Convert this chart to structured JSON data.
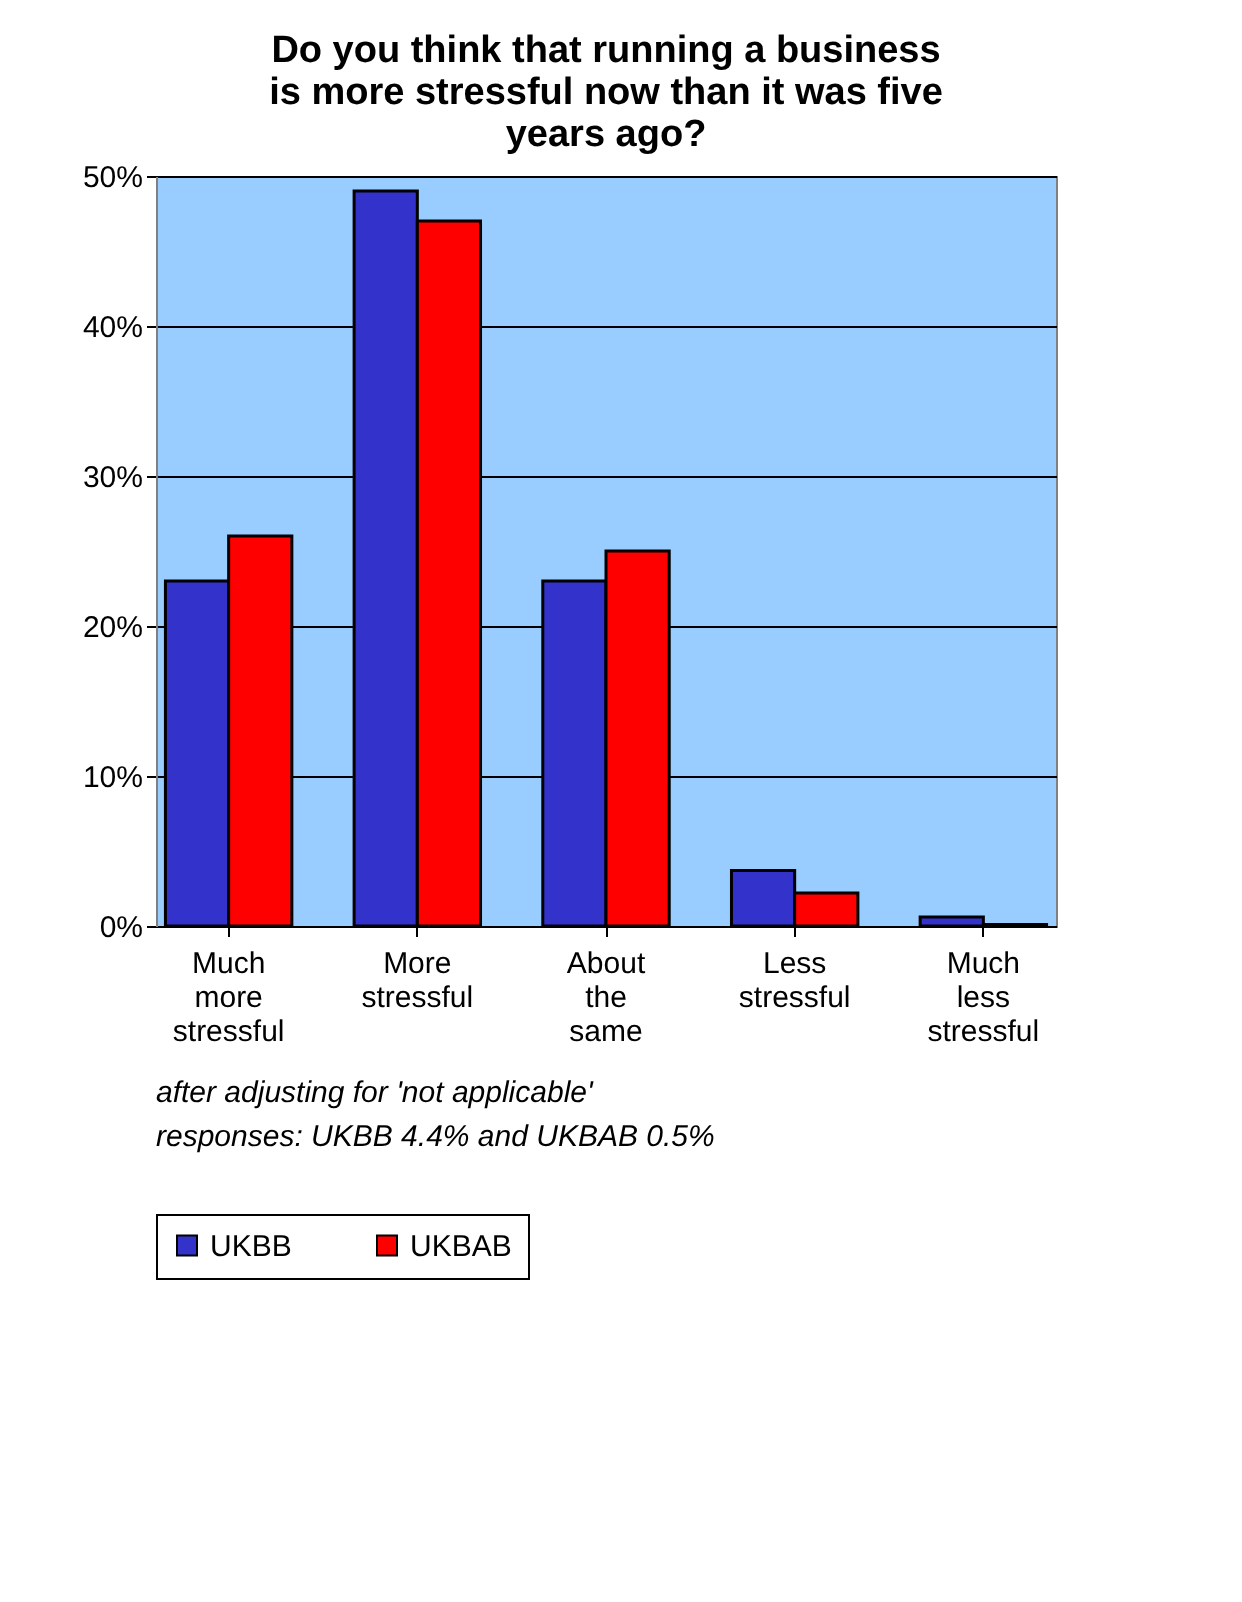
{
  "chart_data": {
    "type": "bar",
    "title": "Do you think that running a business is more stressful now than it was five years ago?",
    "categories": [
      "Much more stressful",
      "More stressful",
      "About the same",
      "Less stressful",
      "Much less stressful"
    ],
    "series": [
      {
        "name": "UKBB",
        "color": "#3333cc",
        "values": [
          23,
          49,
          23,
          3.7,
          0.6
        ]
      },
      {
        "name": "UKBAB",
        "color": "#ff0000",
        "values": [
          26,
          47,
          25,
          2.2,
          0.1
        ]
      }
    ],
    "ylim": [
      0,
      50
    ],
    "yticks": [
      {
        "value": 0,
        "label": "0%"
      },
      {
        "value": 10,
        "label": "10%"
      },
      {
        "value": 20,
        "label": "20%"
      },
      {
        "value": 30,
        "label": "30%"
      },
      {
        "value": 40,
        "label": "40%"
      },
      {
        "value": 50,
        "label": "50%"
      }
    ],
    "grid": "y",
    "legend": "bottom",
    "annotations": [
      "after adjusting for 'not applicable' responses: UKBB 4.4% and UKBAB 0.5%"
    ]
  }
}
